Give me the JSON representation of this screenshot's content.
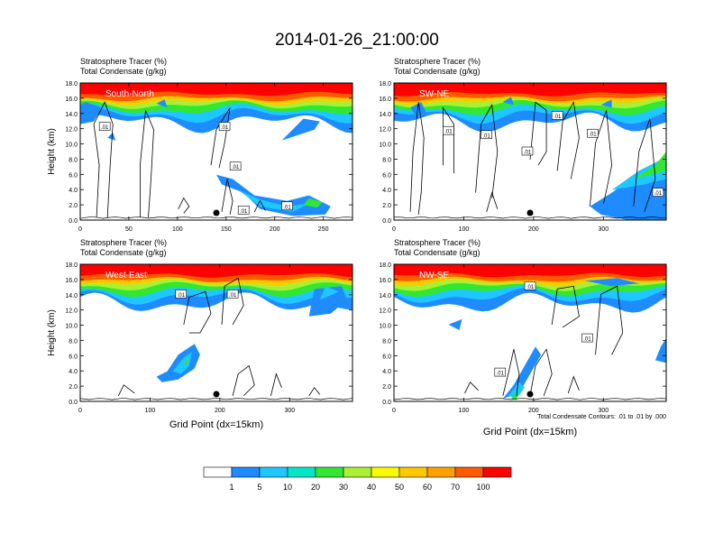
{
  "title": "2014-01-26_21:00:00",
  "contour_note": "Total Condensate Contours: .01 to .01 by .000",
  "colorbar": {
    "labels": [
      "1",
      "5",
      "10",
      "20",
      "30",
      "40",
      "50",
      "60",
      "70",
      "100"
    ],
    "colors": [
      "#ffffff",
      "#1e8cff",
      "#1ec8ff",
      "#00e8c8",
      "#32e632",
      "#aaf032",
      "#fafa00",
      "#ffc800",
      "#ffa000",
      "#ff5a00",
      "#ff0000"
    ]
  },
  "chart_data": [
    {
      "type": "contour",
      "panel": "South-North",
      "header_line1": "Stratosphere Tracer   (%)",
      "header_line2": "Total Condensate   (g/kg)",
      "ylabel": "Height (km)",
      "xlabel": "",
      "xlim": [
        0,
        280
      ],
      "ylim": [
        0,
        18
      ],
      "x_ticks": [
        0,
        50,
        100,
        150,
        200,
        250
      ],
      "y_ticks": [
        "0.0",
        "2.0",
        "4.0",
        "6.0",
        "8.0",
        "10.0",
        "12.0",
        "14.0",
        "16.0",
        "18.0"
      ],
      "contour_labels": [
        ".01",
        ".01",
        ".01",
        ".01",
        ".01"
      ],
      "marker_x": 140
    },
    {
      "type": "contour",
      "panel": "SW-NE",
      "header_line1": "Stratosphere Tracer   (%)",
      "header_line2": "Total Condensate   (g/kg)",
      "ylabel": "",
      "xlabel": "",
      "xlim": [
        0,
        390
      ],
      "ylim": [
        0,
        18
      ],
      "x_ticks": [
        0,
        100,
        200,
        300
      ],
      "y_ticks": [
        "0.0",
        "2.0",
        "4.0",
        "6.0",
        "8.0",
        "10.0",
        "12.0",
        "14.0",
        "16.0",
        "18.0"
      ],
      "contour_labels": [
        ".01",
        ".01",
        ".01",
        ".01",
        ".01",
        ".01"
      ],
      "marker_x": 195
    },
    {
      "type": "contour",
      "panel": "West-East",
      "header_line1": "Stratosphere Tracer   (%)",
      "header_line2": "Total Condensate   (g/kg)",
      "ylabel": "Height (km)",
      "xlabel": "Grid Point (dx=15km)",
      "xlim": [
        0,
        390
      ],
      "ylim": [
        0,
        18
      ],
      "x_ticks": [
        0,
        100,
        200,
        300
      ],
      "y_ticks": [
        "0.0",
        "2.0",
        "4.0",
        "6.0",
        "8.0",
        "10.0",
        "12.0",
        "14.0",
        "16.0",
        "18.0"
      ],
      "contour_labels": [
        ".01",
        ".01"
      ],
      "marker_x": 195
    },
    {
      "type": "contour",
      "panel": "NW-SE",
      "header_line1": "Stratosphere Tracer   (%)",
      "header_line2": "Total Condensate   (g/kg)",
      "ylabel": "",
      "xlabel": "Grid Point (dx=15km)",
      "xlim": [
        0,
        390
      ],
      "ylim": [
        0,
        18
      ],
      "x_ticks": [
        0,
        100,
        200,
        300
      ],
      "y_ticks": [
        "0.0",
        "2.0",
        "4.0",
        "6.0",
        "8.0",
        "10.0",
        "12.0",
        "14.0",
        "16.0",
        "18.0"
      ],
      "contour_labels": [
        ".01",
        ".01",
        ".01"
      ],
      "marker_x": 195
    }
  ]
}
